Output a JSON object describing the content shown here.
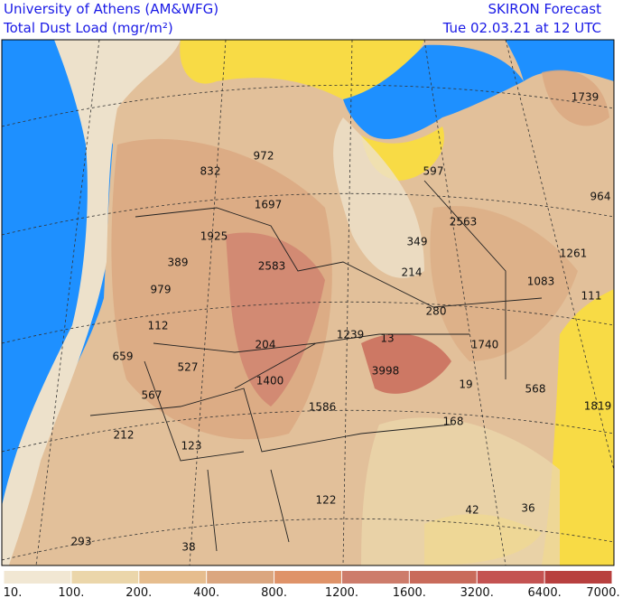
{
  "header": {
    "title": "University of Athens (AM&WFG)",
    "subtitle": "Total Dust Load (mgr/m²)",
    "product": "SKIRON Forecast",
    "valid_time": "Tue 02.03.21 at 12 UTC"
  },
  "map": {
    "labels": [
      1739,
      832,
      972,
      597,
      964,
      1697,
      2563,
      1925,
      349,
      1261,
      389,
      2583,
      214,
      979,
      1083,
      111,
      280,
      112,
      1239,
      13,
      1740,
      659,
      204,
      527,
      3998,
      1400,
      19,
      568,
      567,
      1819,
      1586,
      168,
      212,
      123,
      122,
      42,
      36,
      293,
      38
    ]
  },
  "colorbar": {
    "ticks": [
      {
        "value": 10,
        "label": "10."
      },
      {
        "value": 100,
        "label": "100."
      },
      {
        "value": 200,
        "label": "200."
      },
      {
        "value": 400,
        "label": "400."
      },
      {
        "value": 800,
        "label": "800."
      },
      {
        "value": 1200,
        "label": "1200."
      },
      {
        "value": 1600,
        "label": "1600."
      },
      {
        "value": 3200,
        "label": "3200."
      },
      {
        "value": 6400,
        "label": "6400."
      },
      {
        "value": 7000,
        "label": "7000."
      }
    ],
    "colors": [
      "#f1e7d3",
      "#ebd6aa",
      "#e6bd8e",
      "#dba67f",
      "#df9369",
      "#cd7c6b",
      "#c96b5b",
      "#c45352",
      "#b8403f"
    ]
  }
}
